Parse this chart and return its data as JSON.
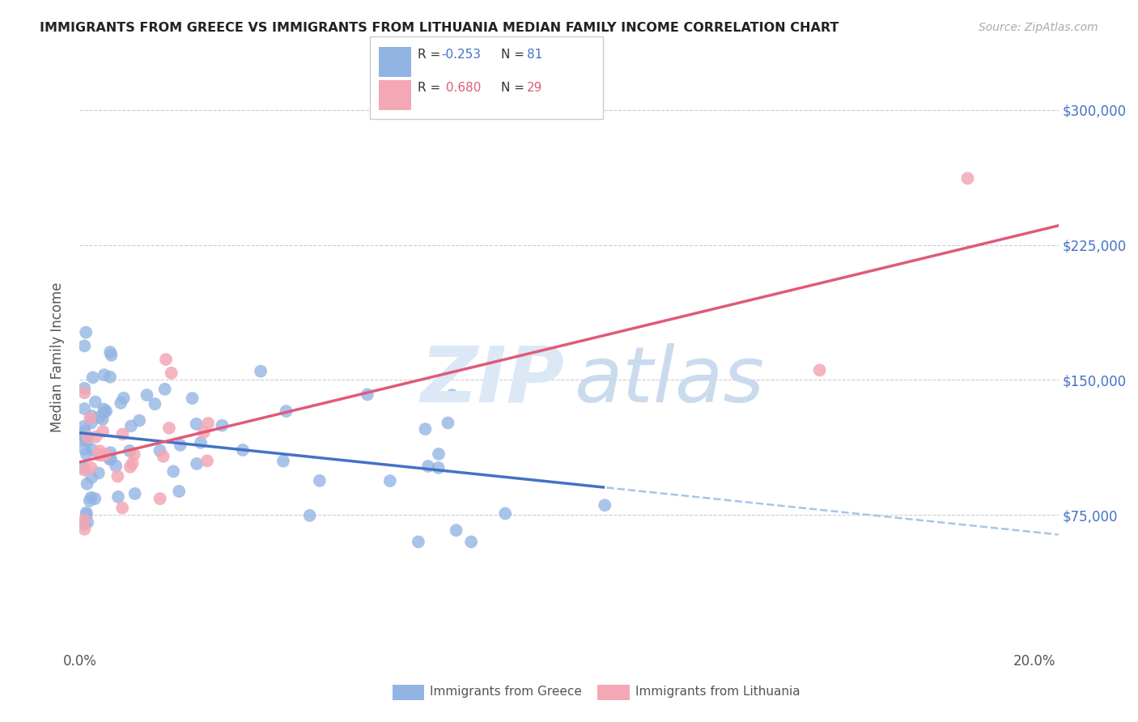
{
  "title": "IMMIGRANTS FROM GREECE VS IMMIGRANTS FROM LITHUANIA MEDIAN FAMILY INCOME CORRELATION CHART",
  "source": "Source: ZipAtlas.com",
  "ylabel": "Median Family Income",
  "xlim": [
    0.0,
    0.205
  ],
  "ylim": [
    0,
    325000
  ],
  "yticks": [
    0,
    75000,
    150000,
    225000,
    300000
  ],
  "ytick_labels": [
    "",
    "$75,000",
    "$150,000",
    "$225,000",
    "$300,000"
  ],
  "xticks": [
    0.0,
    0.05,
    0.1,
    0.15,
    0.2
  ],
  "xtick_labels": [
    "0.0%",
    "",
    "",
    "",
    "20.0%"
  ],
  "color_blue": "#92b4e3",
  "color_pink": "#f4a7b5",
  "line_blue": "#4472c4",
  "line_pink": "#e05a7a",
  "line_blue_dash": "#a8c4e8",
  "bg_color": "#ffffff",
  "grid_color": "#cccccc"
}
